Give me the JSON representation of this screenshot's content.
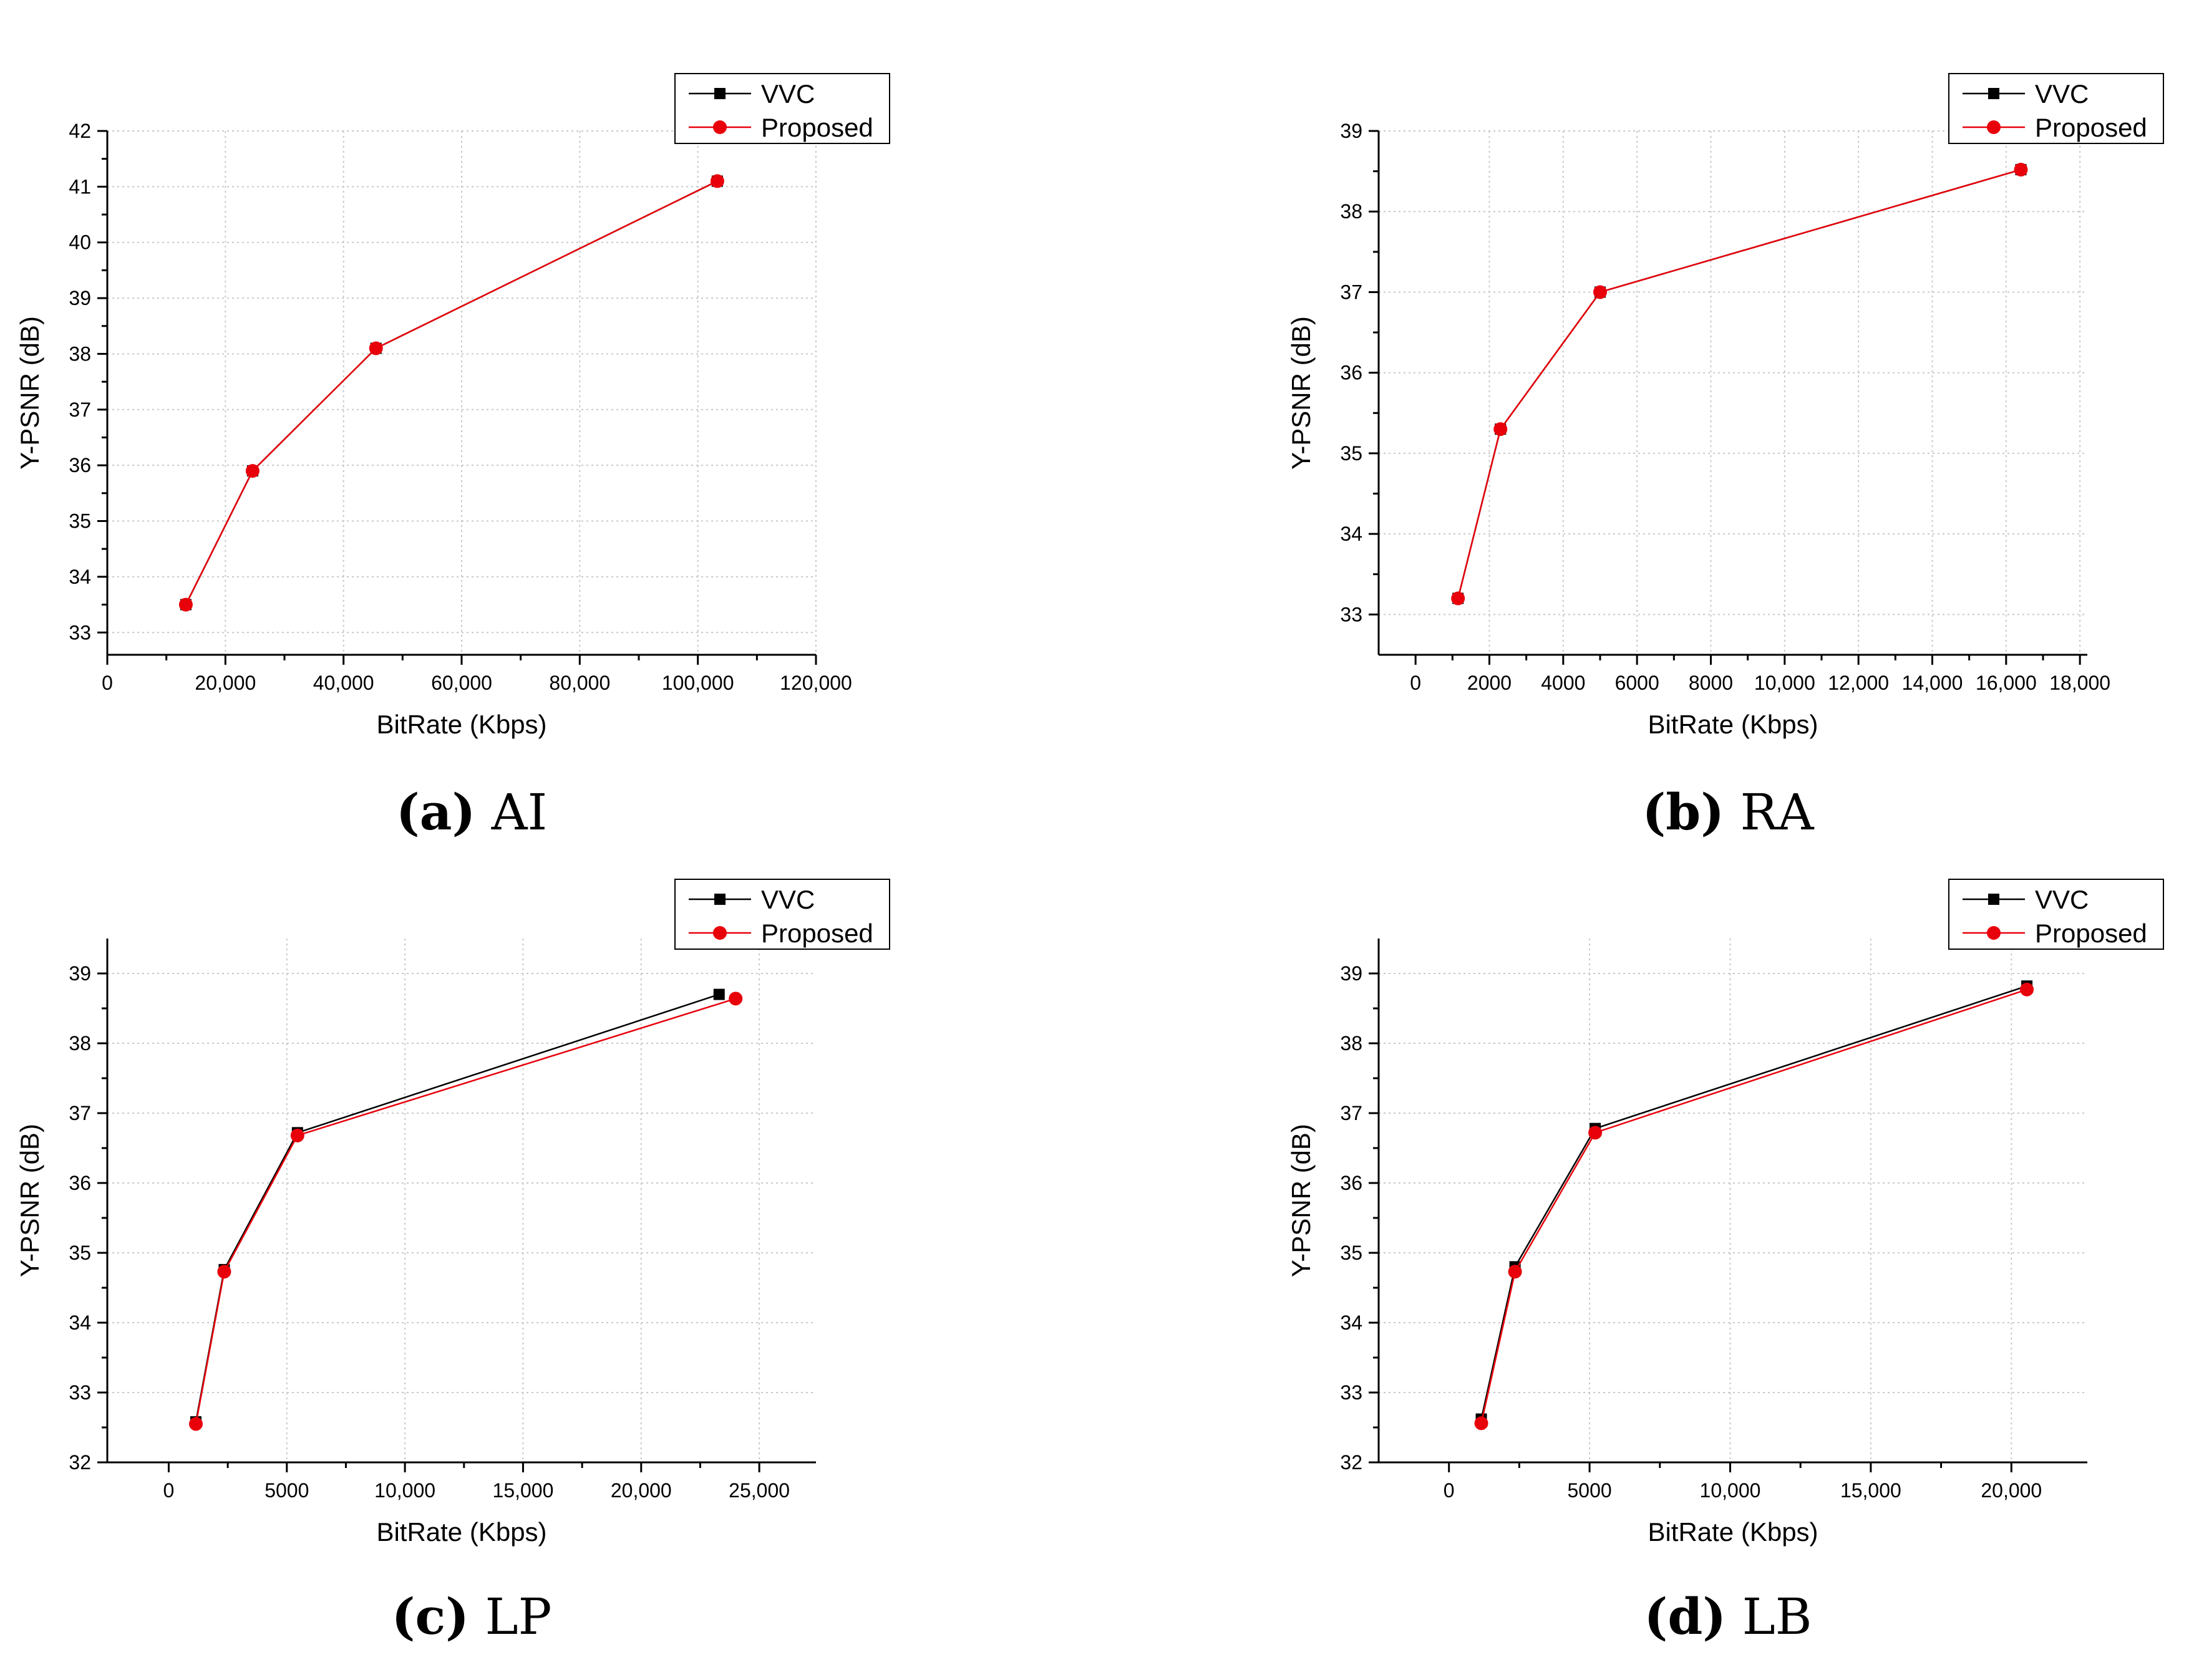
{
  "chart_data": [
    {
      "type": "line",
      "panel_label": "(a)",
      "panel_name": "AI",
      "xlabel": "BitRate (Kbps)",
      "ylabel": "Y-PSNR (dB)",
      "xlim": [
        0,
        120000
      ],
      "ylim": [
        32.6,
        42
      ],
      "xticks": [
        0,
        20000,
        40000,
        60000,
        80000,
        100000,
        120000
      ],
      "xtick_labels": [
        "0",
        "20,000",
        "40,000",
        "60,000",
        "80,000",
        "100,000",
        "120,000"
      ],
      "yticks": [
        33,
        34,
        35,
        36,
        37,
        38,
        39,
        40,
        41,
        42
      ],
      "ytick_labels": [
        "33",
        "34",
        "35",
        "36",
        "37",
        "38",
        "39",
        "40",
        "41",
        "42"
      ],
      "grid": true,
      "legend_position": "top-right",
      "series": [
        {
          "name": "VVC",
          "color": "#000000",
          "marker": "square",
          "x": [
            13300,
            24600,
            45500,
            103300
          ],
          "y": [
            33.5,
            35.9,
            38.1,
            41.1
          ]
        },
        {
          "name": "Proposed",
          "color": "#e8000b",
          "marker": "circle",
          "x": [
            13300,
            24600,
            45500,
            103300
          ],
          "y": [
            33.5,
            35.9,
            38.1,
            41.1
          ]
        }
      ]
    },
    {
      "type": "line",
      "panel_label": "(b)",
      "panel_name": "RA",
      "xlabel": "BitRate (Kbps)",
      "ylabel": "Y-PSNR (dB)",
      "xlim": [
        -1000,
        18200
      ],
      "ylim": [
        32.5,
        39
      ],
      "xticks": [
        0,
        2000,
        4000,
        6000,
        8000,
        10000,
        12000,
        14000,
        16000,
        18000
      ],
      "xtick_labels": [
        "0",
        "2000",
        "4000",
        "6000",
        "8000",
        "10,000",
        "12,000",
        "14,000",
        "16,000",
        "18,000"
      ],
      "yticks": [
        33,
        34,
        35,
        36,
        37,
        38,
        39
      ],
      "ytick_labels": [
        "33",
        "34",
        "35",
        "36",
        "37",
        "38",
        "39"
      ],
      "grid": true,
      "legend_position": "top-right",
      "series": [
        {
          "name": "VVC",
          "color": "#000000",
          "marker": "square",
          "x": [
            1150,
            2300,
            5000,
            16400
          ],
          "y": [
            33.2,
            35.3,
            37.0,
            38.52
          ]
        },
        {
          "name": "Proposed",
          "color": "#e8000b",
          "marker": "circle",
          "x": [
            1150,
            2300,
            5000,
            16400
          ],
          "y": [
            33.2,
            35.3,
            37.0,
            38.52
          ]
        }
      ]
    },
    {
      "type": "line",
      "panel_label": "(c)",
      "panel_name": "LP",
      "xlabel": "BitRate (Kbps)",
      "ylabel": "Y-PSNR (dB)",
      "xlim": [
        -2600,
        27400
      ],
      "ylim": [
        32,
        39.5
      ],
      "xticks": [
        0,
        5000,
        10000,
        15000,
        20000,
        25000
      ],
      "xtick_labels": [
        "0",
        "5000",
        "10,000",
        "15,000",
        "20,000",
        "25,000"
      ],
      "yticks": [
        32,
        33,
        34,
        35,
        36,
        37,
        38,
        39
      ],
      "ytick_labels": [
        "32",
        "33",
        "34",
        "35",
        "36",
        "37",
        "38",
        "39"
      ],
      "grid": true,
      "legend_position": "top-right",
      "series": [
        {
          "name": "VVC",
          "color": "#000000",
          "marker": "square",
          "x": [
            1150,
            2350,
            5450,
            23300
          ],
          "y": [
            32.58,
            34.76,
            36.72,
            38.7
          ]
        },
        {
          "name": "Proposed",
          "color": "#e8000b",
          "marker": "circle",
          "x": [
            1150,
            2350,
            5450,
            24000
          ],
          "y": [
            32.55,
            34.73,
            36.68,
            38.64
          ]
        }
      ]
    },
    {
      "type": "line",
      "panel_label": "(d)",
      "panel_name": "LB",
      "xlabel": "BitRate (Kbps)",
      "ylabel": "Y-PSNR (dB)",
      "xlim": [
        -2500,
        22700
      ],
      "ylim": [
        32,
        39.5
      ],
      "xticks": [
        0,
        5000,
        10000,
        15000,
        20000
      ],
      "xtick_labels": [
        "0",
        "5000",
        "10,000",
        "15,000",
        "20,000"
      ],
      "yticks": [
        32,
        33,
        34,
        35,
        36,
        37,
        38,
        39
      ],
      "ytick_labels": [
        "32",
        "33",
        "34",
        "35",
        "36",
        "37",
        "38",
        "39"
      ],
      "grid": true,
      "legend_position": "top-right",
      "series": [
        {
          "name": "VVC",
          "color": "#000000",
          "marker": "square",
          "x": [
            1150,
            2350,
            5200,
            20550
          ],
          "y": [
            32.62,
            34.8,
            36.78,
            38.82
          ]
        },
        {
          "name": "Proposed",
          "color": "#e8000b",
          "marker": "circle",
          "x": [
            1150,
            2350,
            5200,
            20550
          ],
          "y": [
            32.56,
            34.73,
            36.72,
            38.77
          ]
        }
      ]
    }
  ]
}
